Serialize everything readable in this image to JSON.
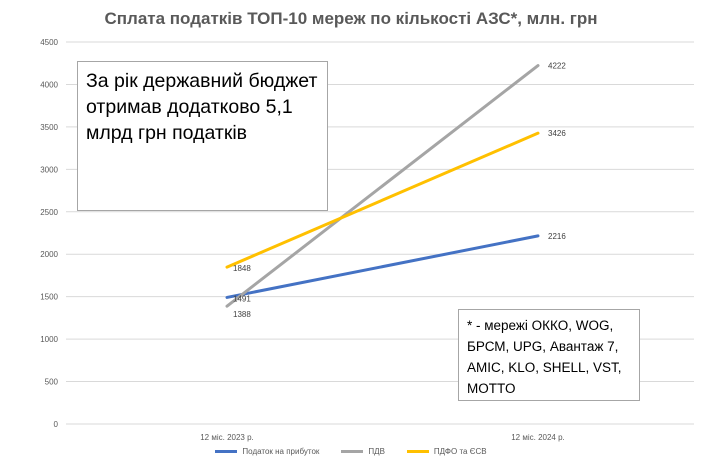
{
  "chart_data": {
    "type": "line",
    "title": "Сплата податків ТОП-10 мереж по кількості АЗС*, млн. грн",
    "categories": [
      "12 міс. 2023 р.",
      "12 міс. 2024 р."
    ],
    "ylim": [
      0,
      4500
    ],
    "yticks": [
      "0",
      "500",
      "1000",
      "1500",
      "2000",
      "2500",
      "3000",
      "3500",
      "4000",
      "4500"
    ],
    "grid": true,
    "legend_position": "bottom",
    "series": [
      {
        "name": "Податок на прибуток",
        "values": [
          1491,
          2216
        ],
        "labels": [
          "1491",
          "2216"
        ],
        "color": "#4472c4"
      },
      {
        "name": "ПДВ",
        "values": [
          1388,
          4222
        ],
        "labels": [
          "1388",
          "4222"
        ],
        "color": "#a5a5a5"
      },
      {
        "name": "ПДФО та ЄСВ",
        "values": [
          1848,
          3426
        ],
        "labels": [
          "1848",
          "3426"
        ],
        "color": "#ffc000"
      }
    ]
  },
  "notes": {
    "main": "За рік державний бюджет отримав додатково 5,1 млрд грн податків",
    "networks": "* - мережі ОККО, WOG, БРСМ, UPG, Авантаж 7, AMIC, KLO, SHELL, VST, MOTTO"
  }
}
